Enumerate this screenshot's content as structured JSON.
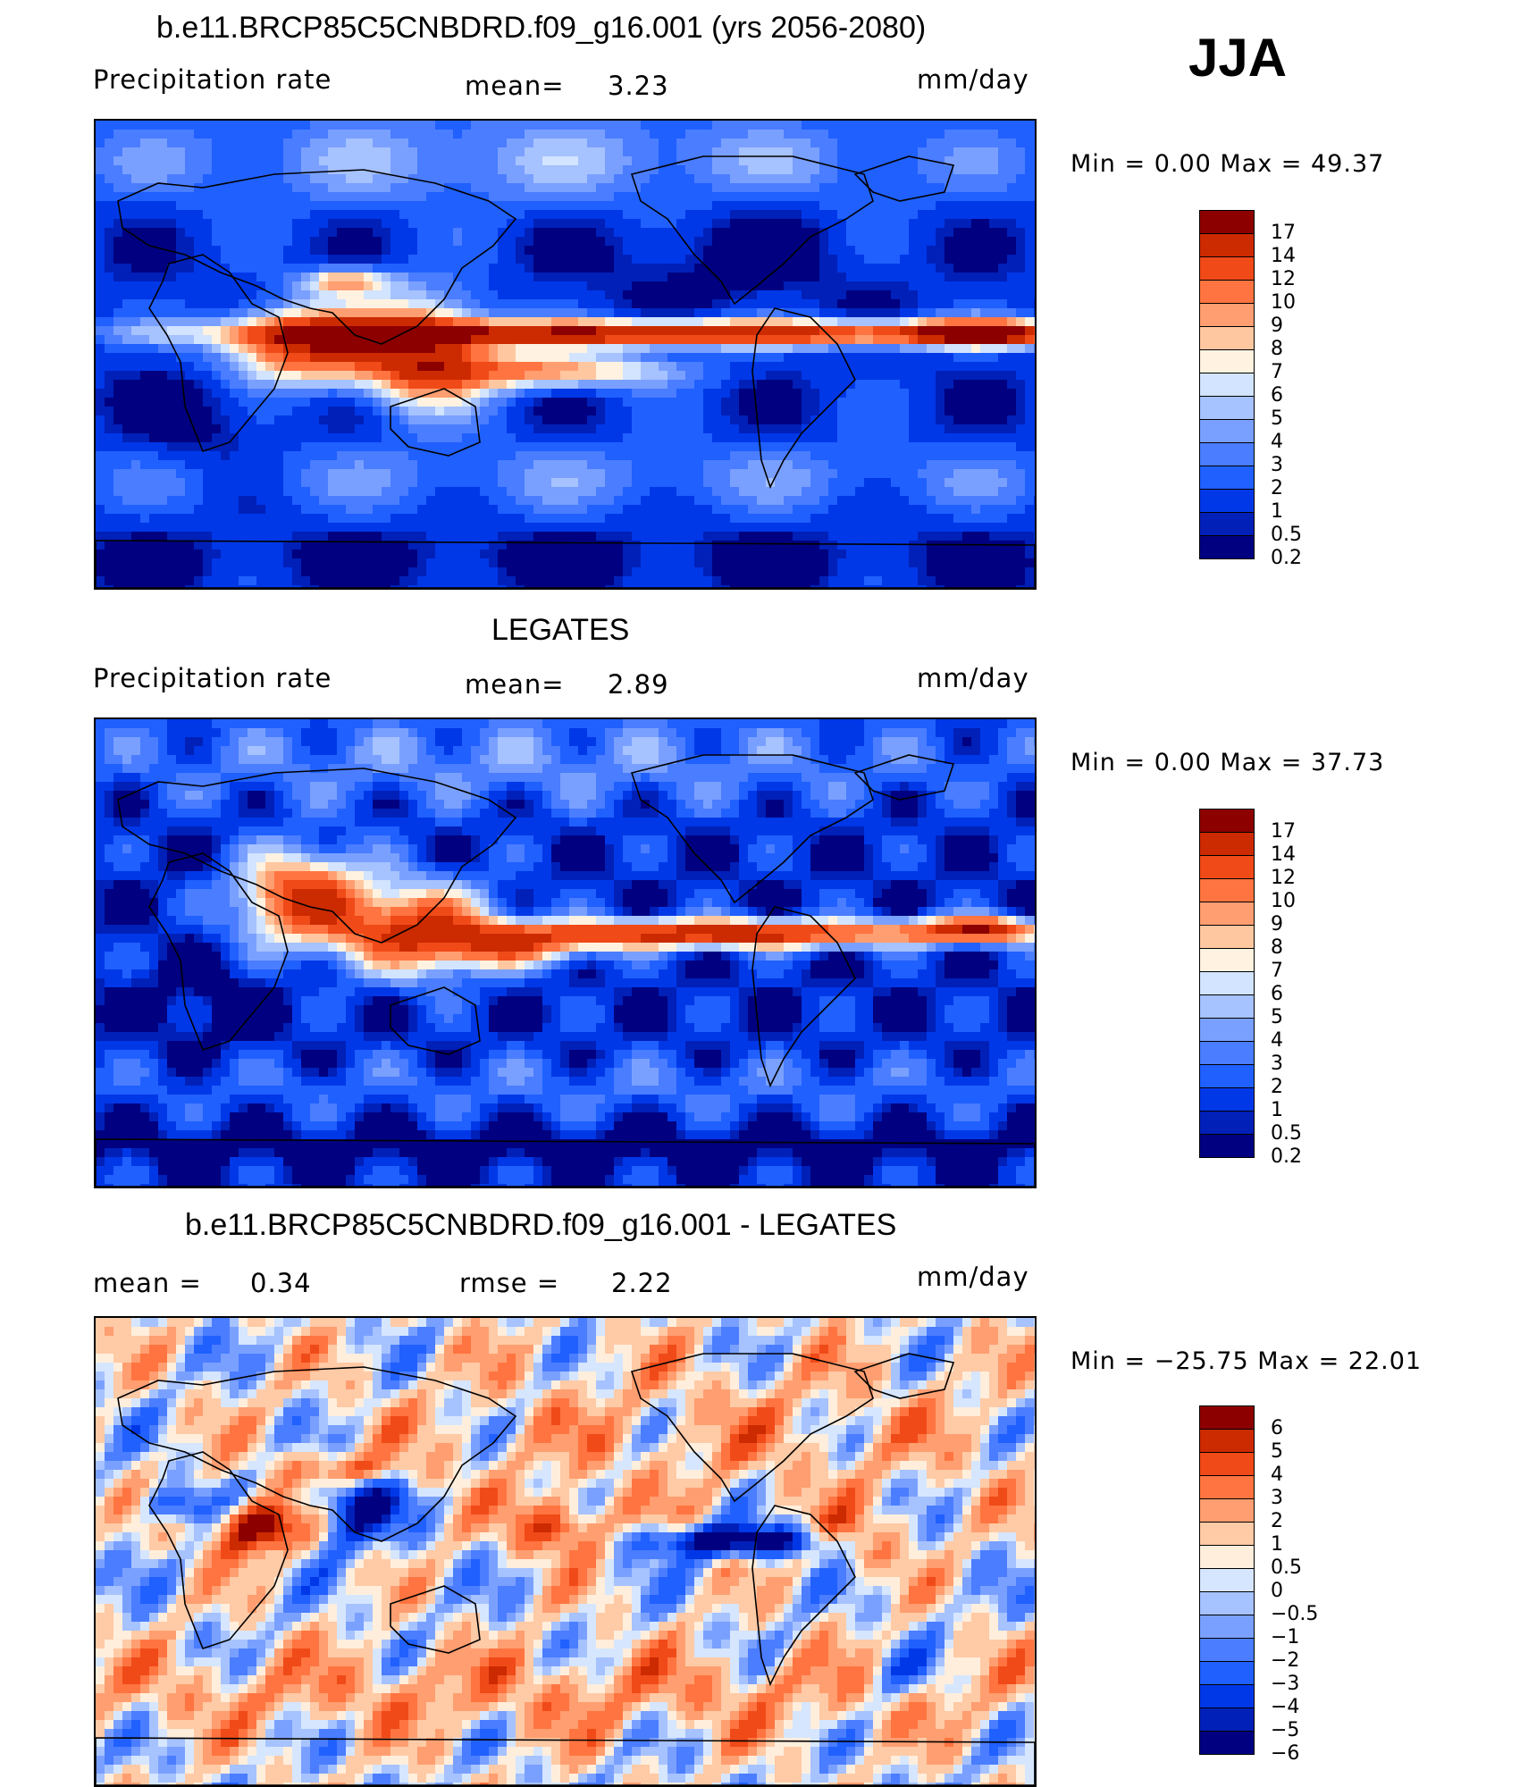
{
  "season": "JJA",
  "colors": {
    "abs": [
      "#000080",
      "#0020b8",
      "#0038e8",
      "#2060ff",
      "#4a7dff",
      "#7aa0ff",
      "#a6c2ff",
      "#d2e4ff",
      "#fff2e0",
      "#ffc7a0",
      "#ff9e70",
      "#ff7440",
      "#f04a18",
      "#cc2a00",
      "#8c0000"
    ],
    "diff": [
      "#000080",
      "#0020b8",
      "#0038e8",
      "#2060ff",
      "#4a7dff",
      "#7aa0ff",
      "#a6c2ff",
      "#d6e6ff",
      "#ffeedc",
      "#ffcaa6",
      "#ff9e70",
      "#ff7440",
      "#f04a18",
      "#cc2a00",
      "#8c0000"
    ]
  },
  "panels": [
    {
      "title": "b.e11.BRCP85C5CNBDRD.f09_g16.001 (yrs 2056-2080)",
      "left_label": "Precipitation  rate",
      "mid_label": "mean=",
      "mid_value": "3.23",
      "units": "mm/day",
      "min_text": "Min  =      0.00  Max  =    49.37",
      "map": "model",
      "colorbar_labels": [
        "17",
        "14",
        "12",
        "10",
        "9",
        "8",
        "7",
        "6",
        "5",
        "4",
        "3",
        "2",
        "1",
        "0.5",
        "0.2"
      ]
    },
    {
      "title": "LEGATES",
      "left_label": "Precipitation  rate",
      "mid_label": "mean=",
      "mid_value": "2.89",
      "units": "mm/day",
      "min_text": "Min  =      0.00  Max  =    37.73",
      "map": "obs",
      "colorbar_labels": [
        "17",
        "14",
        "12",
        "10",
        "9",
        "8",
        "7",
        "6",
        "5",
        "4",
        "3",
        "2",
        "1",
        "0.5",
        "0.2"
      ]
    },
    {
      "title": "b.e11.BRCP85C5CNBDRD.f09_g16.001 - LEGATES",
      "left_label": "mean  =",
      "left_value": "0.34",
      "mid_label": "rmse  =",
      "mid_value": "2.22",
      "units": "mm/day",
      "min_text": "Min  =  −25.75  Max  =    22.01",
      "map": "diff",
      "colorbar_labels": [
        "6",
        "5",
        "4",
        "3",
        "2",
        "1",
        "0.5",
        "0",
        "−0.5",
        "−1",
        "−2",
        "−3",
        "−4",
        "−5",
        "−6"
      ]
    }
  ]
}
